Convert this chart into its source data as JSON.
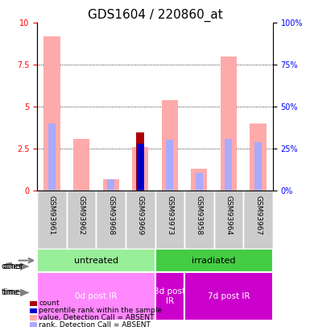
{
  "title": "GDS1604 / 220860_at",
  "samples": [
    "GSM93961",
    "GSM93962",
    "GSM93968",
    "GSM93969",
    "GSM93973",
    "GSM93958",
    "GSM93964",
    "GSM93967"
  ],
  "xlim": [
    0,
    8
  ],
  "ylim_left": [
    0,
    10
  ],
  "ylim_right": [
    0,
    100
  ],
  "yticks_left": [
    0,
    2.5,
    5,
    7.5,
    10
  ],
  "yticks_right": [
    0,
    25,
    50,
    75,
    100
  ],
  "gridlines": [
    2.5,
    5,
    7.5
  ],
  "bars": [
    {
      "x": 0,
      "count": null,
      "count_color": null,
      "rank": 4.0,
      "rank_color": "#aaaaff",
      "value": 9.2,
      "value_color": "#ffaaaa"
    },
    {
      "x": 1,
      "count": null,
      "count_color": null,
      "rank": null,
      "rank_color": null,
      "value": 3.1,
      "value_color": "#ffaaaa"
    },
    {
      "x": 2,
      "count": null,
      "count_color": null,
      "rank": 0.7,
      "rank_color": "#aaaaff",
      "value": 0.7,
      "value_color": "#ffaaaa"
    },
    {
      "x": 3,
      "count": 3.5,
      "count_color": "#aa0000",
      "rank": 2.8,
      "rank_color": "#0000cc",
      "value": 2.6,
      "value_color": "#ffaaaa"
    },
    {
      "x": 4,
      "count": null,
      "count_color": null,
      "rank": 3.05,
      "rank_color": "#aaaaff",
      "value": 5.4,
      "value_color": "#ffaaaa"
    },
    {
      "x": 5,
      "count": null,
      "count_color": null,
      "rank": 1.1,
      "rank_color": "#aaaaff",
      "value": 1.3,
      "value_color": "#ffaaaa"
    },
    {
      "x": 6,
      "count": null,
      "count_color": null,
      "rank": 3.1,
      "rank_color": "#aaaaff",
      "value": 8.0,
      "value_color": "#ffaaaa"
    },
    {
      "x": 7,
      "count": null,
      "count_color": null,
      "rank": 2.9,
      "rank_color": "#aaaaff",
      "value": 4.0,
      "value_color": "#ffaaaa"
    }
  ],
  "group_other": [
    {
      "label": "untreated",
      "x_start": 0,
      "x_end": 4,
      "color": "#99ee99"
    },
    {
      "label": "irradiated",
      "x_start": 4,
      "x_end": 8,
      "color": "#44cc44"
    }
  ],
  "group_time": [
    {
      "label": "0d post IR",
      "x_start": 0,
      "x_end": 4,
      "color": "#ff88ff"
    },
    {
      "label": "3d post\nIR",
      "x_start": 4,
      "x_end": 5,
      "color": "#cc00cc"
    },
    {
      "label": "7d post IR",
      "x_start": 5,
      "x_end": 8,
      "color": "#cc00cc"
    }
  ],
  "legend_items": [
    {
      "label": "count",
      "color": "#aa0000"
    },
    {
      "label": "percentile rank within the sample",
      "color": "#0000cc"
    },
    {
      "label": "value, Detection Call = ABSENT",
      "color": "#ffaaaa"
    },
    {
      "label": "rank, Detection Call = ABSENT",
      "color": "#aaaaff"
    }
  ],
  "bar_width": 0.55,
  "background_color": "#ffffff",
  "title_fontsize": 11,
  "tick_fontsize": 7,
  "label_fontsize": 8
}
